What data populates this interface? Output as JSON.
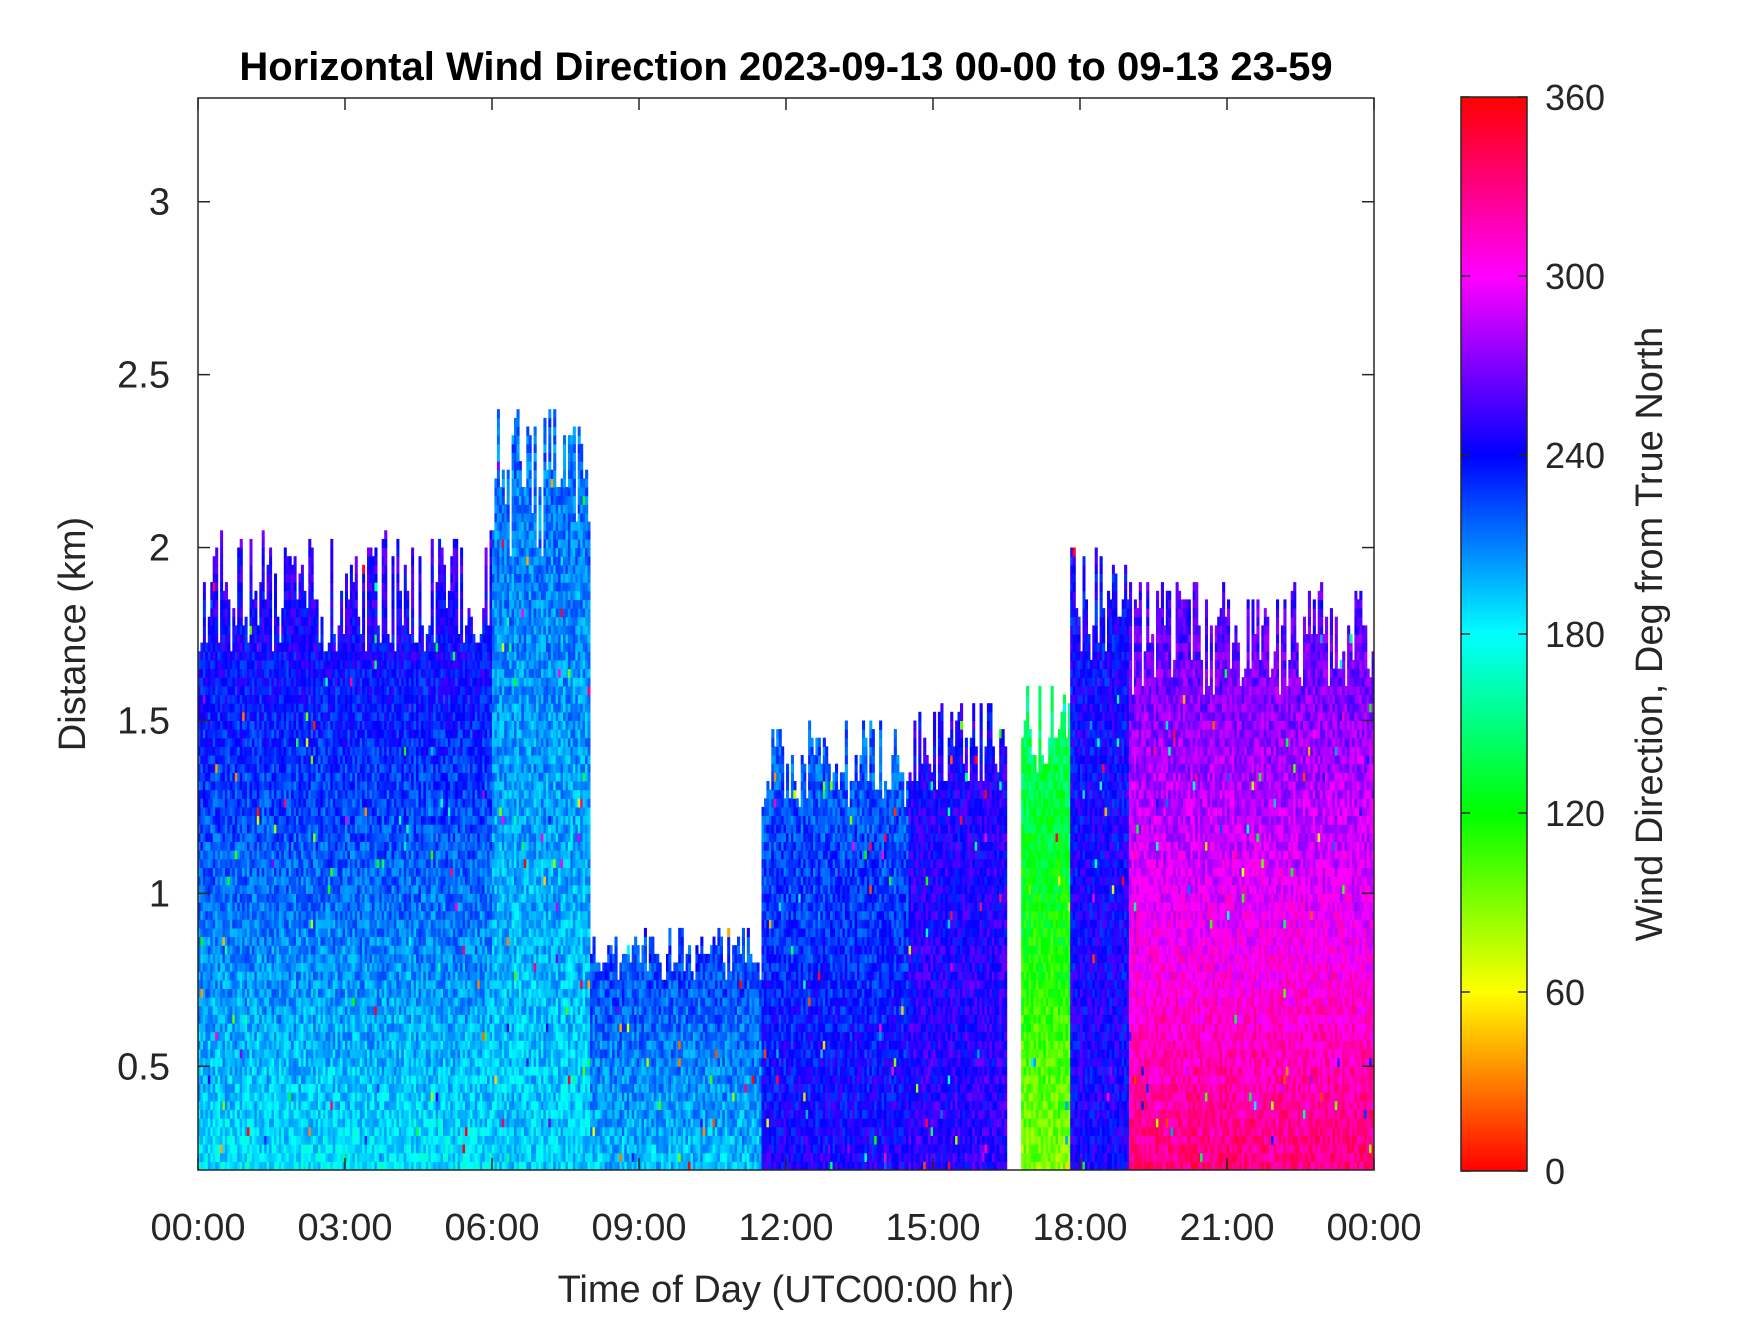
{
  "chart_data": {
    "type": "heatmap",
    "title": "Horizontal Wind Direction 2023-09-13 00-00 to 09-13 23-59",
    "xlabel": "Time of Day (UTC00:00 hr)",
    "ylabel": "Distance (km)",
    "x_tick_labels": [
      "00:00",
      "03:00",
      "06:00",
      "09:00",
      "12:00",
      "15:00",
      "18:00",
      "21:00",
      "00:00"
    ],
    "x_ticks_hours": [
      0,
      3,
      6,
      9,
      12,
      15,
      18,
      21,
      24
    ],
    "xlim_hours": [
      0,
      24
    ],
    "y_ticks": [
      0.5,
      1,
      1.5,
      2,
      2.5,
      3
    ],
    "y_tick_labels": [
      "0.5",
      "1",
      "1.5",
      "2",
      "2.5",
      "3"
    ],
    "ylim": [
      0.2,
      3.3
    ],
    "colorbar": {
      "label": "Wind Direction, Deg from True North",
      "ticks": [
        0,
        60,
        120,
        180,
        240,
        300,
        360
      ],
      "tick_labels": [
        "0",
        "60",
        "120",
        "180",
        "240",
        "300",
        "360"
      ],
      "range": [
        0,
        360
      ],
      "colormap": "hsv"
    },
    "grid": false,
    "regions": [
      {
        "name": "00-06h",
        "t_start": 0,
        "t_end": 6.0,
        "top_km": 2.05,
        "dir_near_surface": 185,
        "dir_aloft": 255
      },
      {
        "name": "06-08h",
        "t_start": 6.0,
        "t_end": 8.0,
        "top_km": 2.4,
        "dir_near_surface": 190,
        "dir_aloft": 215
      },
      {
        "name": "08-11.5h",
        "t_start": 8.0,
        "t_end": 11.5,
        "top_km": 0.9,
        "dir_near_surface": 195,
        "dir_aloft": 230
      },
      {
        "name": "11.5-14.5h",
        "t_start": 11.5,
        "t_end": 14.5,
        "top_km": 1.5,
        "dir_near_surface": 245,
        "dir_aloft": 215
      },
      {
        "name": "14.5-16.5h",
        "t_start": 14.5,
        "t_end": 16.5,
        "top_km": 1.55,
        "dir_near_surface": 250,
        "dir_aloft": 245
      },
      {
        "name": "16.8-17.8h",
        "t_start": 16.8,
        "t_end": 17.8,
        "top_km": 1.6,
        "dir_near_surface": 90,
        "dir_aloft": 150
      },
      {
        "name": "17.8-19h",
        "t_start": 17.8,
        "t_end": 19.0,
        "top_km": 2.0,
        "dir_near_surface": 245,
        "dir_aloft": 240
      },
      {
        "name": "19-24h",
        "t_start": 19.0,
        "t_end": 24.0,
        "top_km": 1.9,
        "dir_near_surface": 330,
        "dir_aloft": 255
      }
    ]
  }
}
